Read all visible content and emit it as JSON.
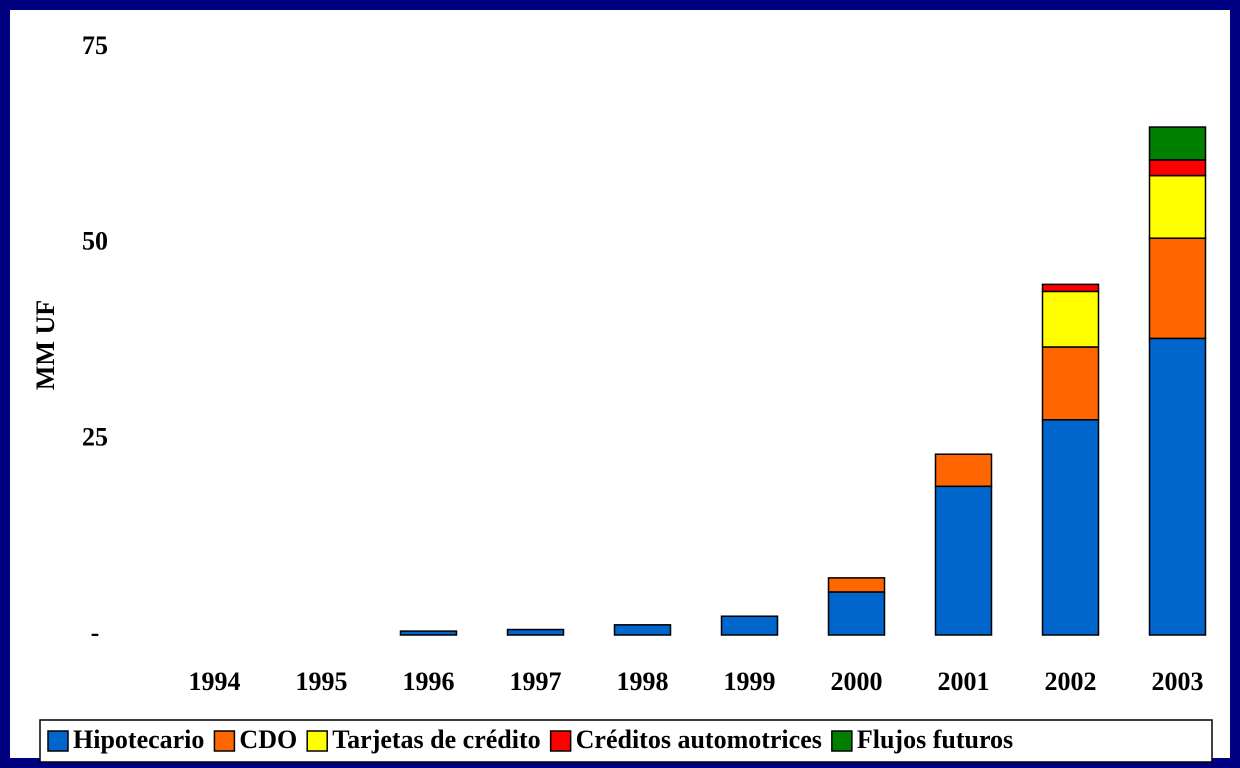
{
  "chart_data": {
    "type": "stacked_bar",
    "y_label": "MM UF",
    "categories": [
      "1994",
      "1995",
      "1996",
      "1997",
      "1998",
      "1999",
      "2000",
      "2001",
      "2002",
      "2003"
    ],
    "series": [
      {
        "name": "Hipotecario",
        "color": "#0066cc",
        "values": [
          0,
          0,
          0.5,
          0.7,
          1.3,
          2.4,
          5.5,
          19.0,
          27.5,
          37.9
        ]
      },
      {
        "name": "CDO",
        "color": "#ff6600",
        "values": [
          0,
          0,
          0,
          0,
          0,
          0,
          1.8,
          4.1,
          9.3,
          12.8
        ]
      },
      {
        "name": "Tarjetas de crédito",
        "color": "#ffff00",
        "values": [
          0,
          0,
          0,
          0,
          0,
          0,
          0,
          0,
          7.1,
          8.0
        ]
      },
      {
        "name": "Créditos automotrices",
        "color": "#ff0000",
        "values": [
          0,
          0,
          0,
          0,
          0,
          0,
          0,
          0,
          0.9,
          2.0
        ]
      },
      {
        "name": "Flujos futuros",
        "color": "#008000",
        "values": [
          0,
          0,
          0,
          0,
          0,
          0,
          0,
          0,
          0,
          4.2
        ]
      }
    ],
    "ylim": [
      0,
      75
    ],
    "yticks": [
      {
        "value": 0,
        "label": "-"
      },
      25,
      50,
      75
    ],
    "legend": "bottom"
  }
}
